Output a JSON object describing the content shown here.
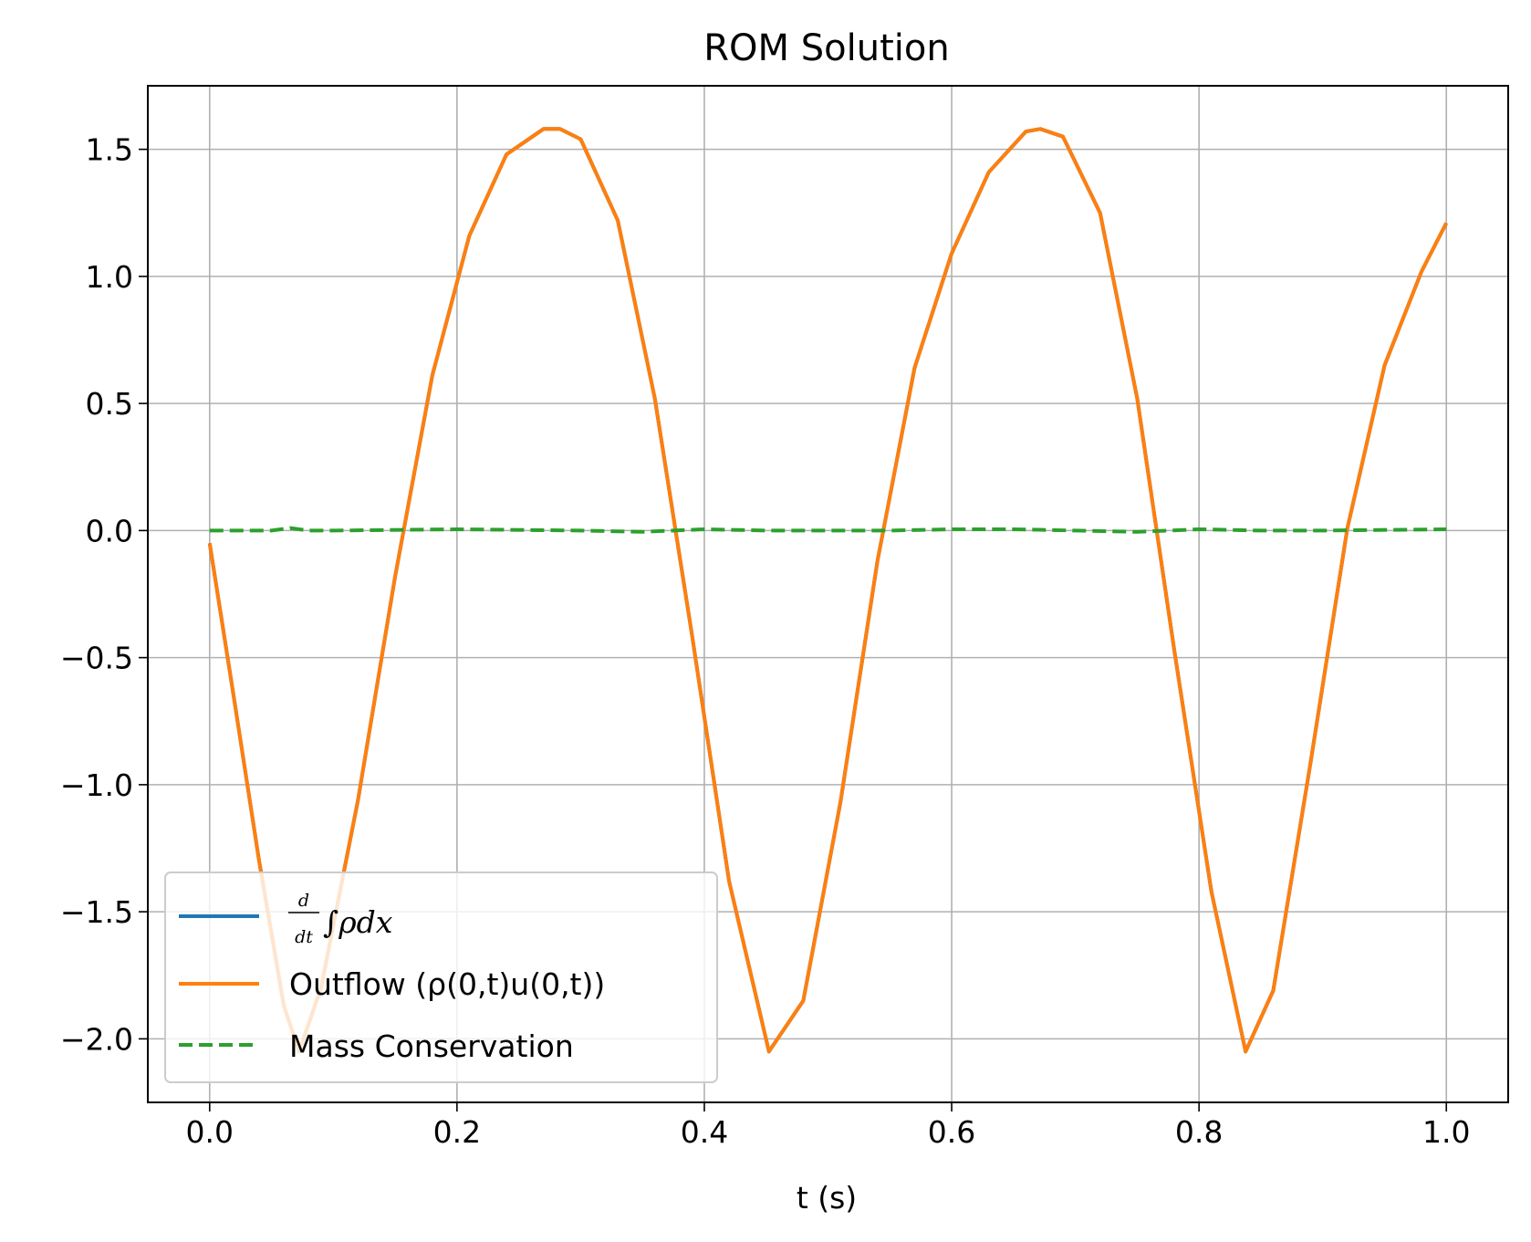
{
  "chart_data": {
    "type": "line",
    "title": "ROM Solution",
    "xlabel": "t (s)",
    "ylabel": "",
    "xlim": [
      -0.05,
      1.05
    ],
    "ylim": [
      -2.25,
      1.75
    ],
    "xticks": [
      0.0,
      0.2,
      0.4,
      0.6,
      0.8,
      1.0
    ],
    "xtick_labels": [
      "0.0",
      "0.2",
      "0.4",
      "0.6",
      "0.8",
      "1.0"
    ],
    "yticks": [
      1.5,
      1.0,
      0.5,
      0.0,
      -0.5,
      -1.0,
      -1.5,
      -2.0
    ],
    "ytick_labels": [
      "1.5",
      "1.0",
      "0.5",
      "0.0",
      "−0.5",
      "−1.0",
      "−1.5",
      "−2.0"
    ],
    "grid": true,
    "legend_position": "lower-left",
    "series": [
      {
        "name": "d/dt ∫ρdx",
        "color": "#1f77b4",
        "style": "solid",
        "x": [
          0.0,
          0.02,
          0.04,
          0.06,
          0.0723,
          0.09,
          0.12,
          0.15,
          0.18,
          0.21,
          0.24,
          0.27,
          0.2833,
          0.3,
          0.33,
          0.36,
          0.39,
          0.42,
          0.4523,
          0.48,
          0.51,
          0.54,
          0.57,
          0.6,
          0.63,
          0.66,
          0.6717,
          0.69,
          0.72,
          0.75,
          0.78,
          0.81,
          0.8377,
          0.86,
          0.89,
          0.92,
          0.95,
          0.98,
          1.0
        ],
        "y": [
          -0.05,
          -0.67,
          -1.3,
          -1.87,
          -2.05,
          -1.8,
          -1.06,
          -0.18,
          0.61,
          1.16,
          1.48,
          1.58,
          1.58,
          1.54,
          1.22,
          0.52,
          -0.41,
          -1.38,
          -2.05,
          -1.85,
          -1.07,
          -0.12,
          0.64,
          1.09,
          1.41,
          1.57,
          1.58,
          1.55,
          1.25,
          0.52,
          -0.47,
          -1.42,
          -2.05,
          -1.81,
          -0.92,
          0.01,
          0.65,
          1.02,
          1.21
        ]
      },
      {
        "name": "Outflow (ρ(0,t)u(0,t))",
        "color": "#ff7f0e",
        "style": "solid",
        "x": [
          0.0,
          0.02,
          0.04,
          0.06,
          0.0723,
          0.09,
          0.12,
          0.15,
          0.18,
          0.21,
          0.24,
          0.27,
          0.2833,
          0.3,
          0.33,
          0.36,
          0.39,
          0.42,
          0.4523,
          0.48,
          0.51,
          0.54,
          0.57,
          0.6,
          0.63,
          0.66,
          0.6717,
          0.69,
          0.72,
          0.75,
          0.78,
          0.81,
          0.8377,
          0.86,
          0.89,
          0.92,
          0.95,
          0.98,
          1.0
        ],
        "y": [
          -0.05,
          -0.67,
          -1.3,
          -1.87,
          -2.05,
          -1.8,
          -1.06,
          -0.18,
          0.61,
          1.16,
          1.48,
          1.58,
          1.58,
          1.54,
          1.22,
          0.52,
          -0.41,
          -1.38,
          -2.05,
          -1.85,
          -1.07,
          -0.12,
          0.64,
          1.09,
          1.41,
          1.57,
          1.58,
          1.55,
          1.25,
          0.52,
          -0.47,
          -1.42,
          -2.05,
          -1.81,
          -0.92,
          0.01,
          0.65,
          1.02,
          1.21
        ]
      },
      {
        "name": "Mass Conservation",
        "color": "#2ca02c",
        "style": "dashed",
        "x": [
          0.0,
          0.05,
          0.065,
          0.08,
          0.1,
          0.2,
          0.3,
          0.35,
          0.4,
          0.45,
          0.55,
          0.6,
          0.65,
          0.7,
          0.75,
          0.8,
          0.85,
          0.9,
          1.0
        ],
        "y": [
          0.0,
          0.0,
          0.01,
          0.0,
          0.0,
          0.005,
          0.0,
          -0.005,
          0.005,
          0.0,
          0.0,
          0.005,
          0.005,
          0.0,
          -0.005,
          0.005,
          0.0,
          0.0,
          0.005
        ]
      }
    ]
  }
}
